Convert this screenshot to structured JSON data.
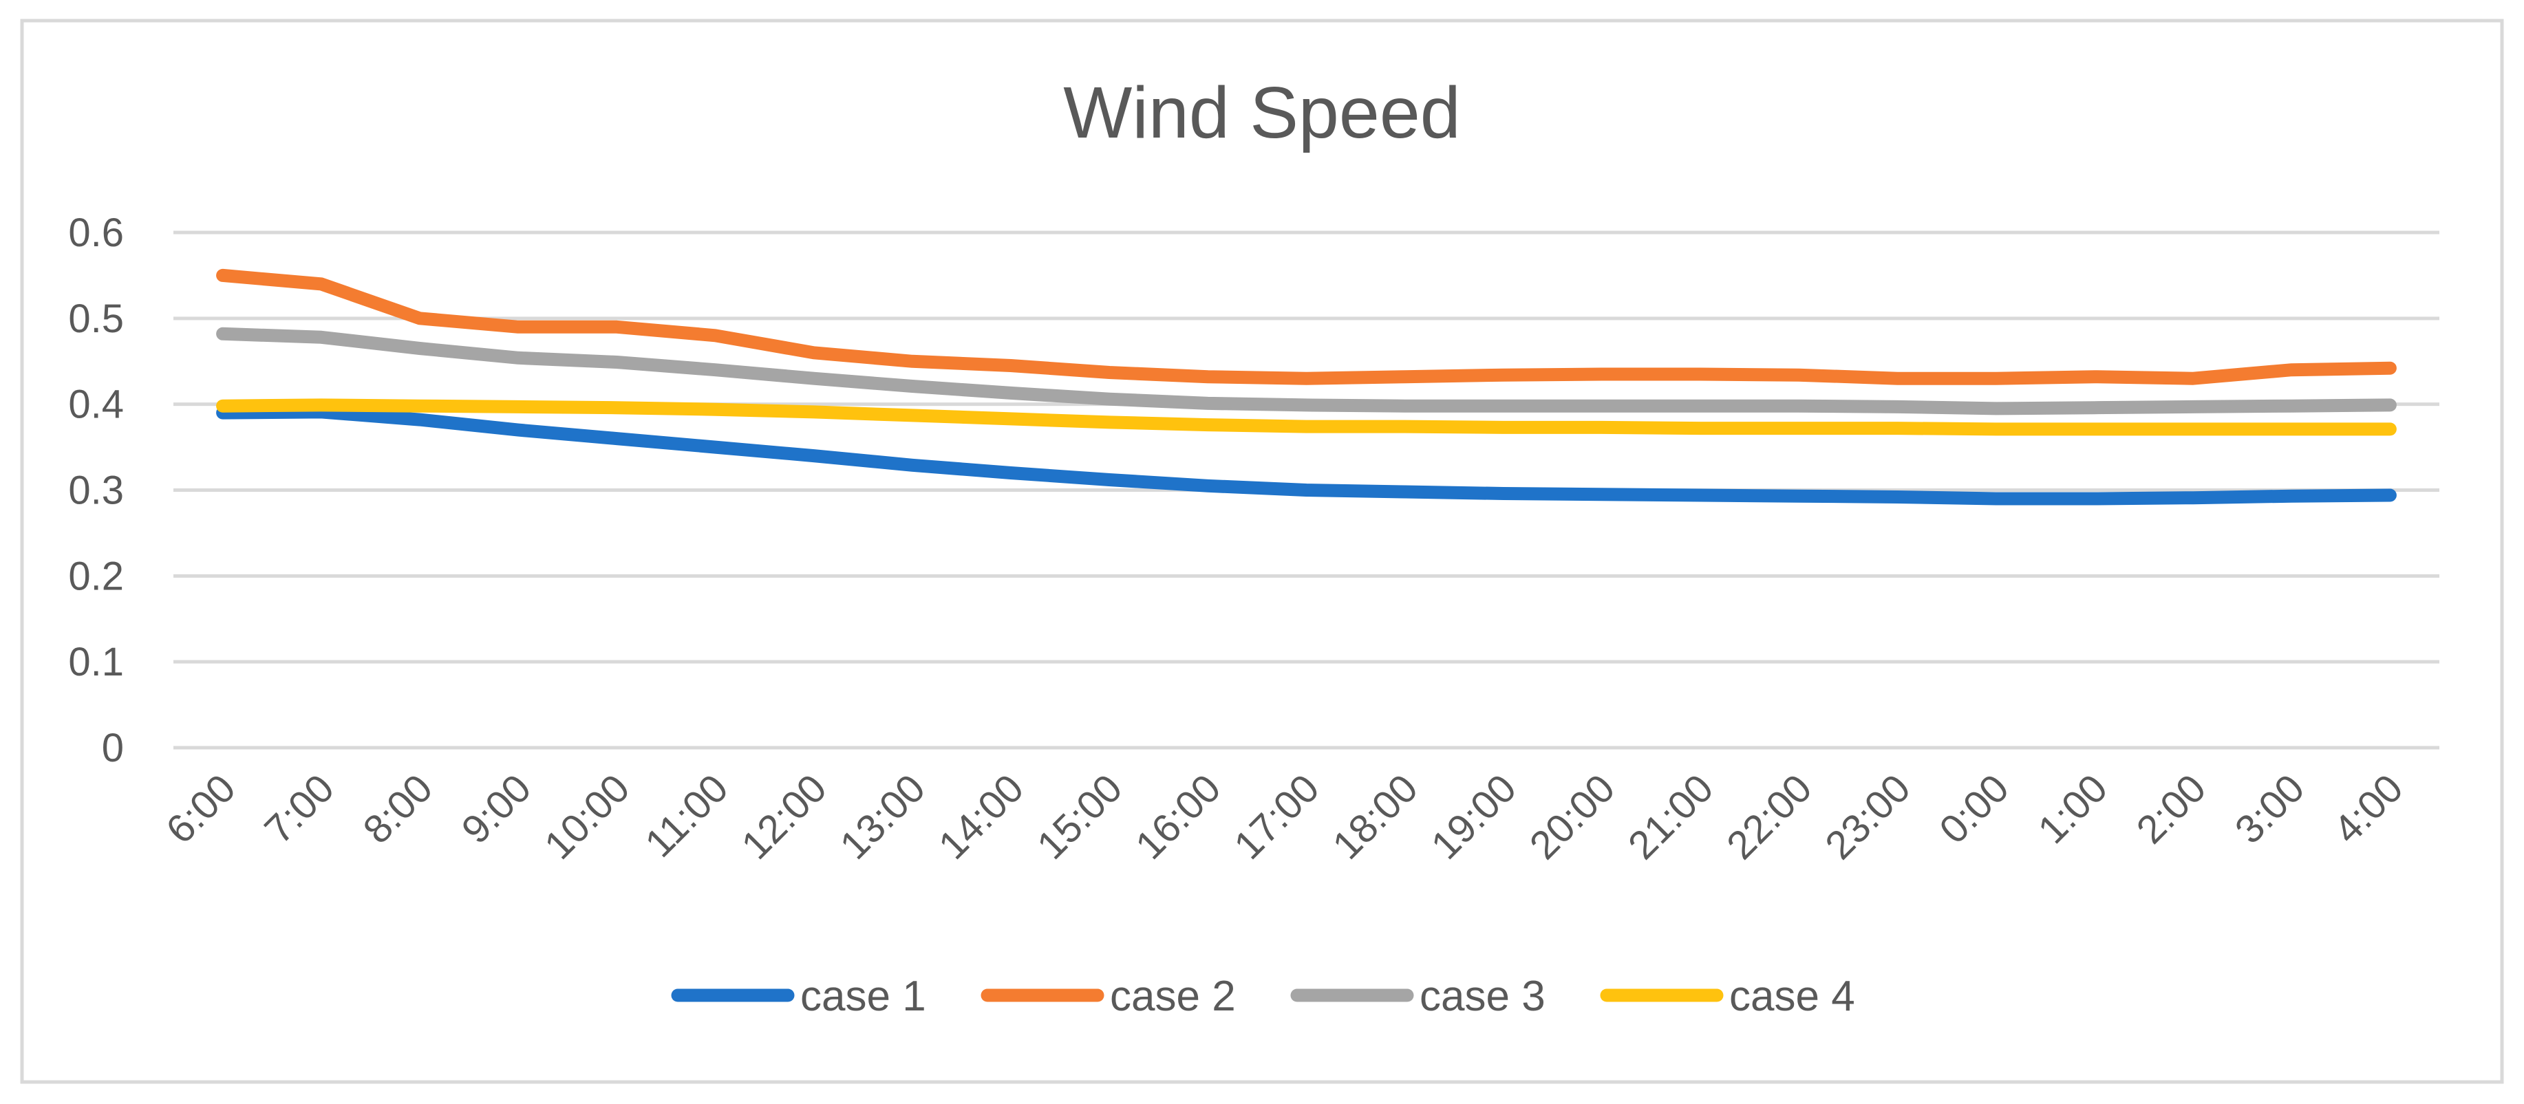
{
  "chart_data": {
    "type": "line",
    "title": "Wind Speed",
    "xlabel": "",
    "ylabel": "",
    "ylim": [
      0,
      0.6
    ],
    "yticks": [
      "0",
      "0.1",
      "0.2",
      "0.3",
      "0.4",
      "0.5",
      "0.6"
    ],
    "grid": true,
    "legend_position": "bottom",
    "categories": [
      "6:00",
      "7:00",
      "8:00",
      "9:00",
      "10:00",
      "11:00",
      "12:00",
      "13:00",
      "14:00",
      "15:00",
      "16:00",
      "17:00",
      "18:00",
      "19:00",
      "20:00",
      "21:00",
      "22:00",
      "23:00",
      "0:00",
      "1:00",
      "2:00",
      "3:00",
      "4:00"
    ],
    "series": [
      {
        "name": "case 1",
        "color": "#1F73C9",
        "values": [
          0.39,
          0.391,
          0.382,
          0.37,
          0.36,
          0.35,
          0.34,
          0.329,
          0.32,
          0.312,
          0.305,
          0.3,
          0.298,
          0.296,
          0.295,
          0.294,
          0.293,
          0.292,
          0.29,
          0.29,
          0.291,
          0.293,
          0.294
        ]
      },
      {
        "name": "case 2",
        "color": "#F47C30",
        "values": [
          0.55,
          0.54,
          0.5,
          0.49,
          0.49,
          0.48,
          0.46,
          0.45,
          0.445,
          0.437,
          0.432,
          0.43,
          0.432,
          0.434,
          0.435,
          0.435,
          0.434,
          0.43,
          0.43,
          0.432,
          0.43,
          0.44,
          0.442
        ]
      },
      {
        "name": "case 3",
        "color": "#A5A5A5",
        "values": [
          0.482,
          0.478,
          0.465,
          0.454,
          0.449,
          0.44,
          0.43,
          0.421,
          0.413,
          0.406,
          0.401,
          0.399,
          0.398,
          0.398,
          0.398,
          0.398,
          0.398,
          0.397,
          0.395,
          0.396,
          0.397,
          0.398,
          0.399
        ]
      },
      {
        "name": "case 4",
        "color": "#FFC20E",
        "values": [
          0.398,
          0.399,
          0.398,
          0.397,
          0.396,
          0.394,
          0.391,
          0.387,
          0.383,
          0.379,
          0.376,
          0.374,
          0.374,
          0.373,
          0.373,
          0.372,
          0.372,
          0.372,
          0.371,
          0.371,
          0.371,
          0.371,
          0.371
        ]
      }
    ]
  }
}
